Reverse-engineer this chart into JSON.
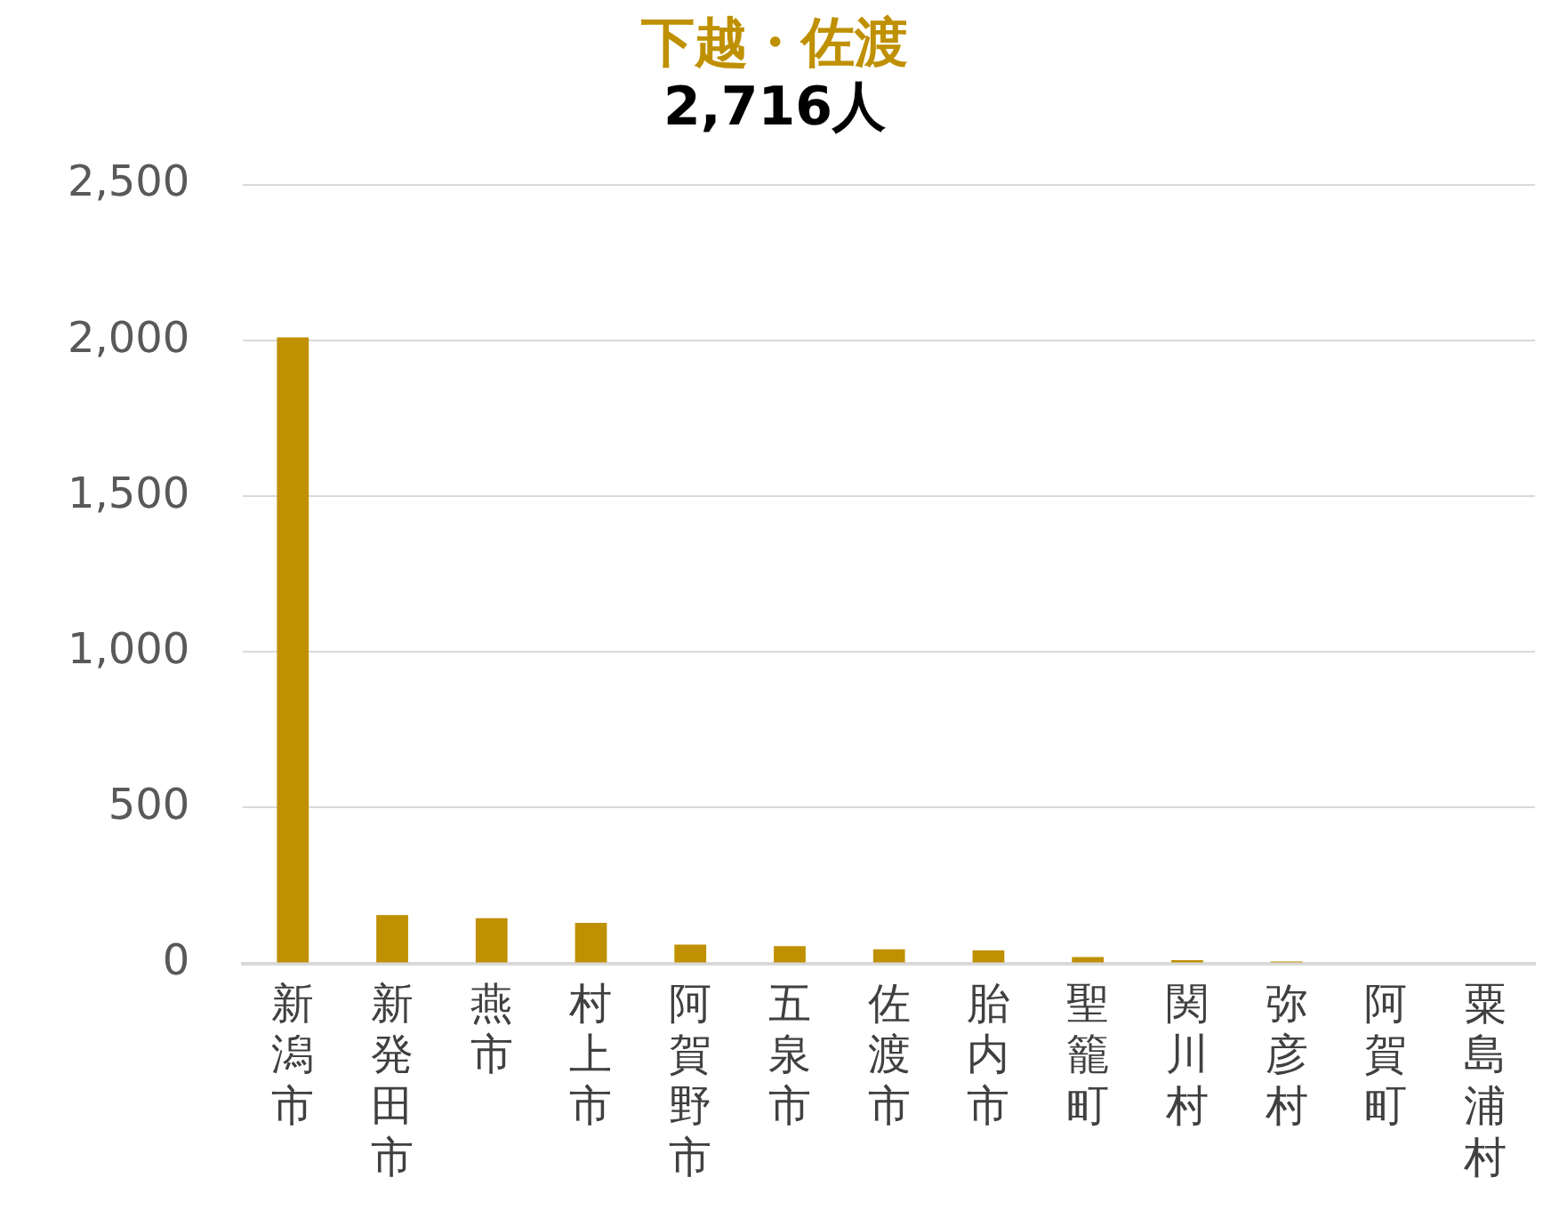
{
  "chart_data": {
    "type": "bar",
    "title": "下越・佐渡",
    "subtitle": "2,716人",
    "categories": [
      "新潟市",
      "新発田市",
      "燕市",
      "村上市",
      "阿賀野市",
      "五泉市",
      "佐渡市",
      "胎内市",
      "聖籠町",
      "関川村",
      "弥彦村",
      "阿賀町",
      "粟島浦村"
    ],
    "series": [
      {
        "color": "#bf9000",
        "values": [
          2010,
          155,
          145,
          130,
          60,
          55,
          45,
          42,
          20,
          10,
          6,
          null,
          null
        ]
      }
    ],
    "ylim": [
      0,
      2500
    ],
    "yticks": [
      0,
      {
        "value": 500,
        "label": "500"
      },
      {
        "value": 1000,
        "label": "1,000"
      },
      {
        "value": 1500,
        "label": "1,500"
      },
      {
        "value": 2000,
        "label": "2,000"
      },
      {
        "value": 2500,
        "label": "2,500"
      }
    ],
    "grid": "y",
    "legend": false
  }
}
